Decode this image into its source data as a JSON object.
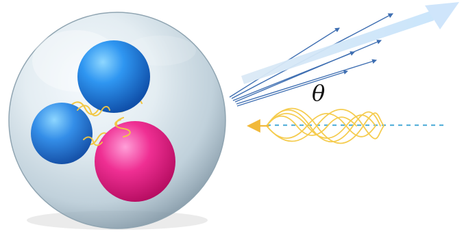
{
  "diagram": {
    "angle_label": "θ",
    "colors": {
      "background": "#ffffff",
      "bubble_edge": "#8fa4b1",
      "bubble_fill": "#d6e4ec",
      "blue_sphere": "#2f86e6",
      "pink_sphere": "#ef2f93",
      "spring": "#f2c744",
      "scatter_arrows": "#3f6fb2",
      "wide_arrow": "#d7e9fa",
      "incident_beam": "#5ab2da",
      "wave": "#f5cc4f",
      "wave_arrow": "#f1b93a",
      "angle_text": "#111111"
    },
    "icons": {
      "bubble": "sphere",
      "atoms": "spheres",
      "bonds": "coil-springs",
      "scattered_rays": "arrows",
      "incident_wave": "sine-waves"
    }
  }
}
